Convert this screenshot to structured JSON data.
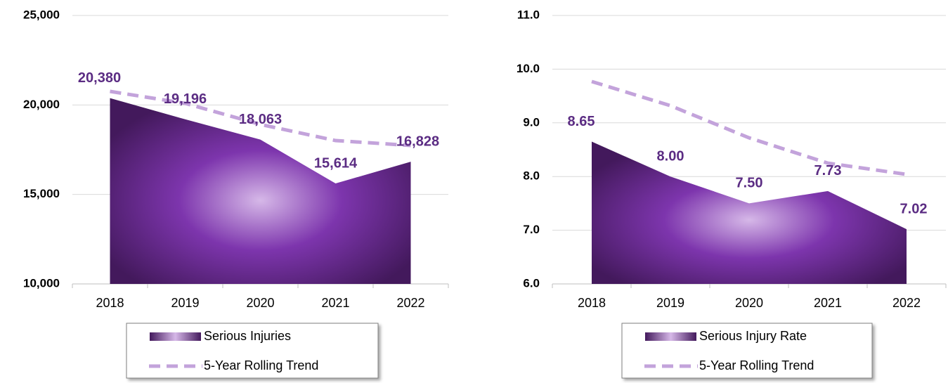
{
  "chart_data": [
    {
      "type": "area",
      "categories": [
        "2018",
        "2019",
        "2020",
        "2021",
        "2022"
      ],
      "series": [
        {
          "name": "Serious Injuries",
          "color": "#6a2d94",
          "values": [
            20380,
            19196,
            18063,
            15614,
            16828
          ],
          "value_labels": [
            "20,380",
            "19,196",
            "18,063",
            "15,614",
            "16,828"
          ]
        },
        {
          "name": "5-Year Rolling Trend",
          "color": "#c3a3db",
          "dashed": true,
          "values": [
            20758,
            20090,
            18912,
            18010,
            17735
          ]
        }
      ],
      "ylim": [
        10000,
        25000
      ],
      "yticks": [
        {
          "value": 10000,
          "label": "10,000"
        },
        {
          "value": 15000,
          "label": "15,000"
        },
        {
          "value": 20000,
          "label": "20,000"
        },
        {
          "value": 25000,
          "label": "25,000"
        }
      ],
      "grid": true,
      "legend": "bottom"
    },
    {
      "type": "area",
      "categories": [
        "2018",
        "2019",
        "2020",
        "2021",
        "2022"
      ],
      "series": [
        {
          "name": "Serious Injury Rate",
          "color": "#6a2d94",
          "values": [
            8.65,
            8.0,
            7.5,
            7.73,
            7.02
          ],
          "value_labels": [
            "8.65",
            "8.00",
            "7.50",
            "7.73",
            "7.02"
          ]
        },
        {
          "name": "5-Year Rolling Trend",
          "color": "#c3a3db",
          "dashed": true,
          "values": [
            9.77,
            9.32,
            8.72,
            8.25,
            8.04
          ]
        }
      ],
      "ylim": [
        6,
        11
      ],
      "yticks": [
        {
          "value": 6,
          "label": "6.0"
        },
        {
          "value": 7,
          "label": "7.0"
        },
        {
          "value": 8,
          "label": "8.0"
        },
        {
          "value": 9,
          "label": "9.0"
        },
        {
          "value": 10,
          "label": "10.0"
        },
        {
          "value": 11,
          "label": "11.0"
        }
      ],
      "grid": true,
      "legend": "bottom"
    }
  ]
}
